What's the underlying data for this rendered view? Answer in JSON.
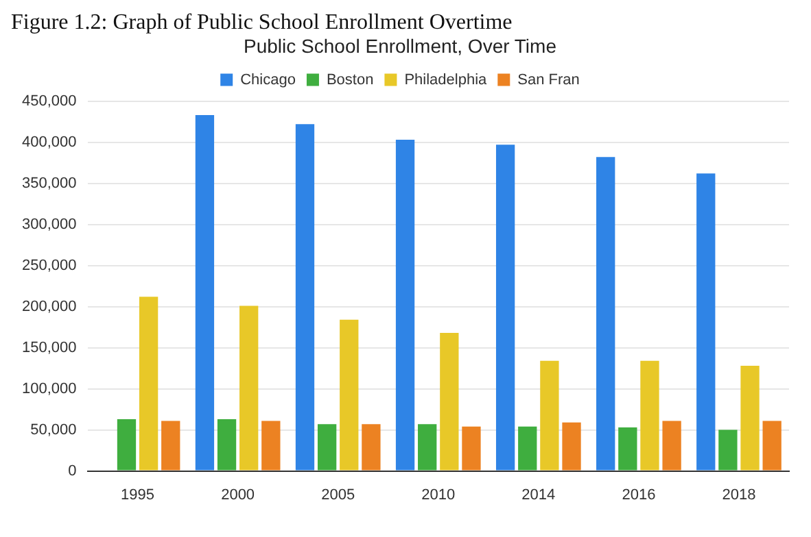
{
  "chart_data": {
    "type": "bar",
    "title": "Public School Enrollment, Over Time",
    "annotations": [
      "Figure 1.2: Graph of Public School Enrollment Overtime"
    ],
    "categories": [
      "1995",
      "2000",
      "2005",
      "2010",
      "2014",
      "2016",
      "2018"
    ],
    "series": [
      {
        "name": "Chicago",
        "color": "#2f84e6",
        "values": [
          null,
          433000,
          422000,
          403000,
          397000,
          382000,
          362000
        ]
      },
      {
        "name": "Boston",
        "color": "#3fae3f",
        "values": [
          63000,
          63000,
          57000,
          57000,
          54000,
          53000,
          50000
        ]
      },
      {
        "name": "Philadelphia",
        "color": "#e8c828",
        "values": [
          212000,
          201000,
          184000,
          168000,
          134000,
          134000,
          128000
        ]
      },
      {
        "name": "San Fran",
        "color": "#ec8222",
        "values": [
          61000,
          61000,
          57000,
          54000,
          59000,
          61000,
          61000
        ]
      }
    ],
    "ylim": [
      0,
      450000
    ],
    "yticks": [
      0,
      {
        "value": 50000,
        "label": "50,000"
      },
      {
        "value": 100000,
        "label": "100,000"
      },
      {
        "value": 150000,
        "label": "150,000"
      },
      {
        "value": 200000,
        "label": "200,000"
      },
      {
        "value": 250000,
        "label": "250,000"
      },
      {
        "value": 300000,
        "label": "300,000"
      },
      {
        "value": 350000,
        "label": "350,000"
      },
      {
        "value": 400000,
        "label": "400,000"
      },
      {
        "value": 450000,
        "label": "450,000"
      }
    ],
    "grid": "y",
    "legend": "top"
  }
}
